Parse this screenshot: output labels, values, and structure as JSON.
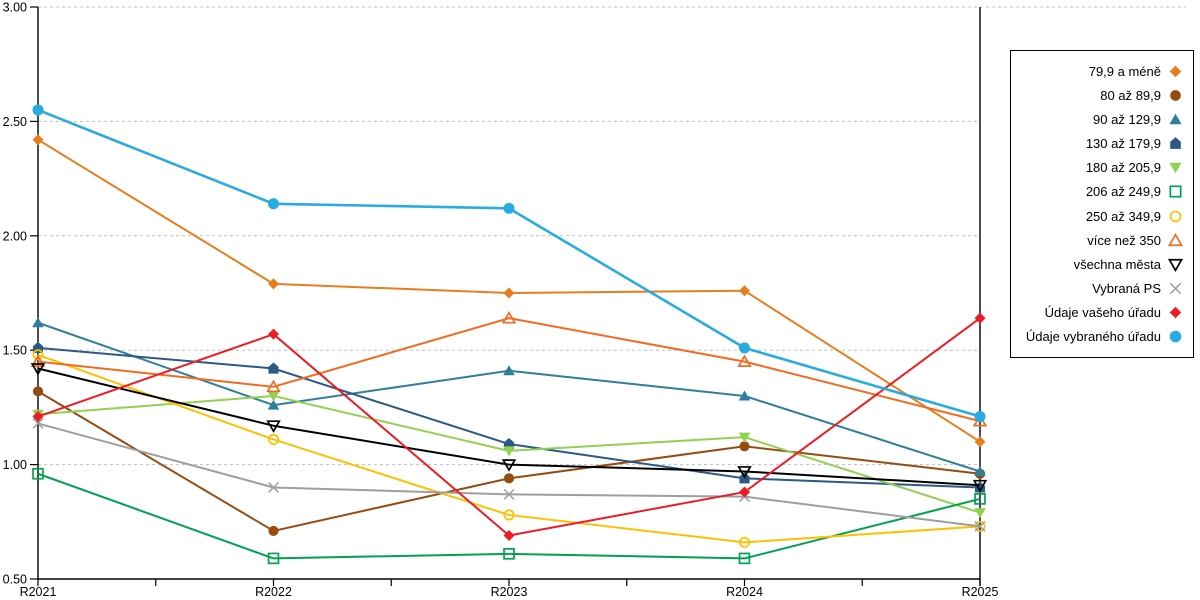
{
  "chart_data": {
    "type": "line",
    "title": "",
    "xlabel": "",
    "ylabel": "",
    "categories": [
      "R2021",
      "R2022",
      "R2023",
      "R2024",
      "R2025"
    ],
    "ylim": [
      0.5,
      3.0
    ],
    "ytick_labels": [
      "3.00",
      "2.50",
      "2.00",
      "1.50",
      "1.00",
      "0.50"
    ],
    "ytick_values": [
      3.0,
      2.5,
      2.0,
      1.5,
      1.0,
      0.5
    ],
    "grid": "horizontal-dashed",
    "legend_position": "right",
    "series": [
      {
        "name": "79,9 a méně",
        "marker": "diamond",
        "fill": "filled",
        "color": "#E87D1E",
        "values": [
          2.42,
          1.79,
          1.75,
          1.76,
          1.1
        ]
      },
      {
        "name": "80 až 89,9",
        "marker": "circle",
        "fill": "filled",
        "color": "#964B0F",
        "values": [
          1.32,
          0.71,
          0.94,
          1.08,
          0.96
        ]
      },
      {
        "name": "90 až 129,9",
        "marker": "triangle-up",
        "fill": "filled",
        "color": "#2E7F9B",
        "values": [
          1.62,
          1.26,
          1.41,
          1.3,
          0.97
        ]
      },
      {
        "name": "130 až 179,9",
        "marker": "pentagon",
        "fill": "filled",
        "color": "#2C5985",
        "values": [
          1.51,
          1.42,
          1.09,
          0.94,
          0.9
        ]
      },
      {
        "name": "180 až 205,9",
        "marker": "triangle-down",
        "fill": "filled",
        "color": "#92D050",
        "values": [
          1.22,
          1.3,
          1.06,
          1.12,
          0.79
        ]
      },
      {
        "name": "206 až 249,9",
        "marker": "square",
        "fill": "open",
        "color": "#00A14F",
        "values": [
          0.96,
          0.59,
          0.61,
          0.59,
          0.85
        ]
      },
      {
        "name": "250 až 349,9",
        "marker": "circle",
        "fill": "open",
        "color": "#FFC000",
        "values": [
          1.48,
          1.11,
          0.78,
          0.66,
          0.73
        ]
      },
      {
        "name": "více než 350",
        "marker": "triangle-up",
        "fill": "open",
        "color": "#F26B21",
        "values": [
          1.45,
          1.34,
          1.64,
          1.45,
          1.19
        ]
      },
      {
        "name": "všechna města",
        "marker": "triangle-down",
        "fill": "open",
        "color": "#000000",
        "values": [
          1.42,
          1.17,
          1.0,
          0.97,
          0.91
        ]
      },
      {
        "name": "Vybraná PS",
        "marker": "x",
        "fill": "open",
        "color": "#9E9E9E",
        "values": [
          1.18,
          0.9,
          0.87,
          0.86,
          0.73
        ]
      },
      {
        "name": "Údaje vašeho úřadu",
        "marker": "diamond",
        "fill": "filled",
        "color": "#EC1C24",
        "values": [
          1.21,
          1.57,
          0.69,
          0.88,
          1.64
        ]
      },
      {
        "name": "Údaje vybraného úřadu",
        "marker": "circle",
        "fill": "filled",
        "color": "#29ABE2",
        "values": [
          2.55,
          2.14,
          2.12,
          1.51,
          1.21
        ]
      }
    ],
    "colors": {
      "gridline": "#BFBFBF",
      "axis": "#000000",
      "label": "#000000"
    }
  }
}
